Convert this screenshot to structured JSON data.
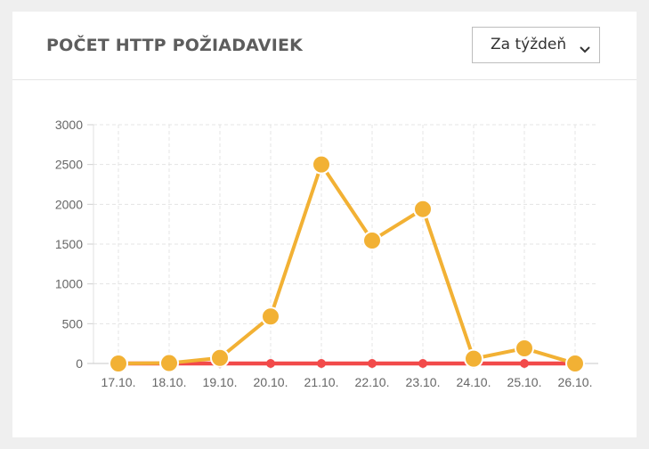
{
  "header": {
    "title": "POČET HTTP POŽIADAVIEK",
    "period_select": {
      "selected": "Za týždeň"
    }
  },
  "icons": {
    "period_chevron": "chevron-down-icon"
  },
  "chart_data": {
    "type": "line",
    "categories": [
      "17.10.",
      "18.10.",
      "19.10.",
      "20.10.",
      "21.10.",
      "22.10.",
      "23.10.",
      "24.10.",
      "25.10.",
      "26.10."
    ],
    "series": [
      {
        "color": "#f2b134",
        "values": [
          0,
          5,
          70,
          590,
          2500,
          1545,
          1940,
          60,
          190,
          0
        ]
      },
      {
        "color": "#f24a4a",
        "values": [
          0,
          0,
          0,
          0,
          0,
          0,
          0,
          0,
          0,
          0
        ]
      }
    ],
    "ylim": [
      0,
      3000
    ],
    "yticks": [
      0,
      500,
      1000,
      1500,
      2000,
      2500,
      3000
    ],
    "grid": true,
    "xlabel": "",
    "ylabel": ""
  }
}
